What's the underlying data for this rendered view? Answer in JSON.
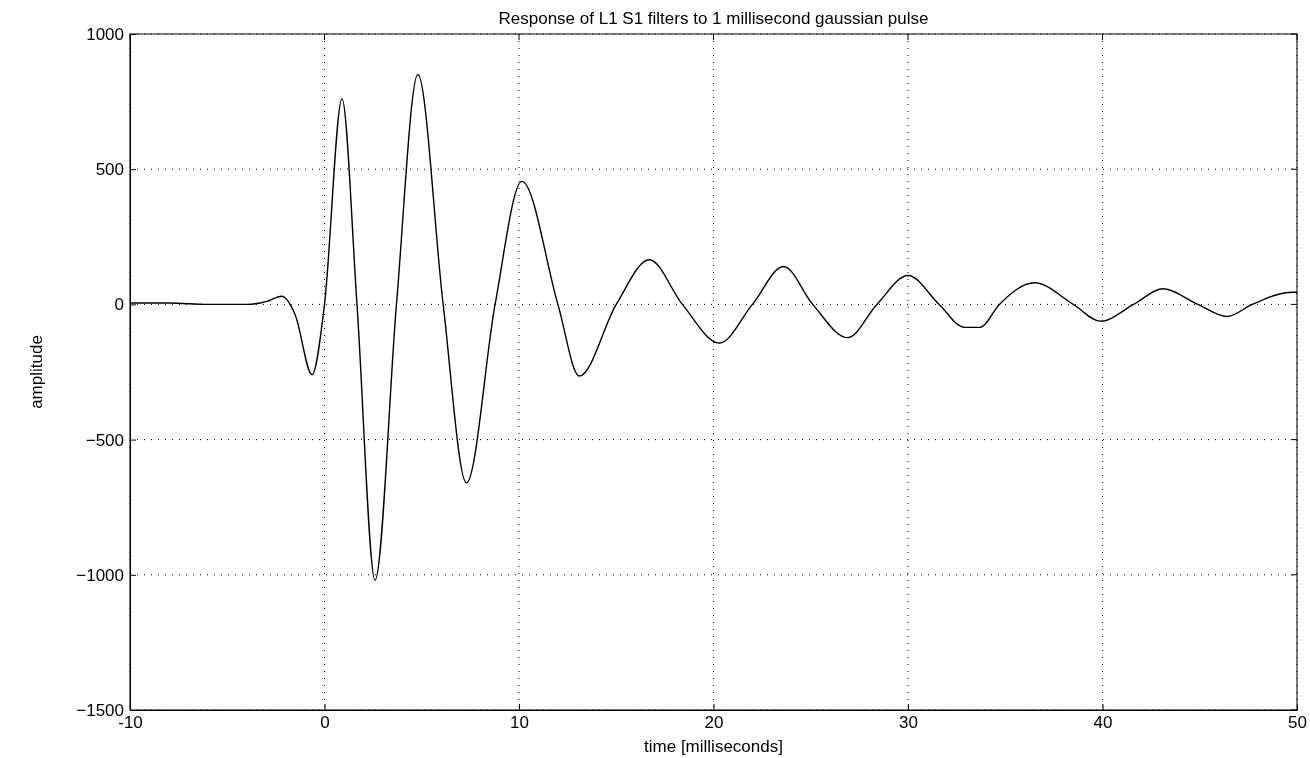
{
  "chart_data": {
    "type": "line",
    "title": "Response of L1 S1 filters to 1 millisecond gaussian pulse",
    "xlabel": "time [milliseconds]",
    "ylabel": "amplitude",
    "xlim": [
      -10,
      50
    ],
    "xticks": [
      -10,
      0,
      10,
      20,
      30,
      40,
      50
    ],
    "ylim": [
      -1500,
      1000
    ],
    "yticks": [
      {
        "value": -1500,
        "label": "−1500"
      },
      {
        "value": -1000,
        "label": "−1000"
      },
      {
        "value": -500,
        "label": "−500"
      },
      0,
      500,
      1000
    ],
    "grid": true,
    "line_style": "solid",
    "marker": "none",
    "series": [
      {
        "color": "#000000",
        "x": [
          -10,
          -8,
          -6,
          -4,
          -3,
          -2.2,
          -1.5,
          -0.64,
          0,
          0.9,
          1.67,
          2.6,
          3.7,
          4.8,
          6.1,
          7.3,
          8.77,
          10.15,
          12,
          13.1,
          15,
          16.7,
          18.4,
          20.3,
          22,
          23.6,
          25.1,
          26.9,
          28.4,
          30,
          31.6,
          32.9,
          33.7,
          34.7,
          36.5,
          38.5,
          39.9,
          41.6,
          43.1,
          44.9,
          46.4,
          47.7,
          49.75,
          50
        ],
        "values": [
          5,
          5,
          0,
          0,
          10,
          30,
          -40,
          -260,
          0,
          760,
          0,
          -1020,
          0,
          850,
          0,
          -660,
          0,
          455,
          0,
          -265,
          0,
          165,
          0,
          -143,
          0,
          140,
          0,
          -123,
          0,
          107,
          0,
          -85,
          -85,
          0,
          80,
          0,
          -62,
          0,
          58,
          0,
          -45,
          0,
          45,
          45
        ]
      }
    ]
  }
}
